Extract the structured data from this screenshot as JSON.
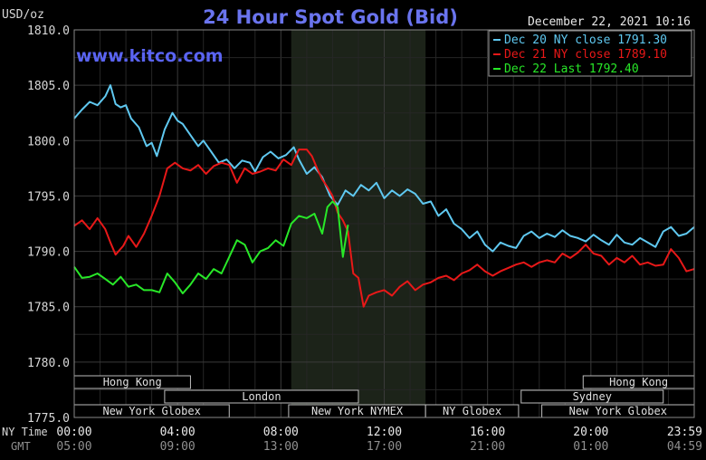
{
  "chart_data": {
    "type": "line",
    "title": "24 Hour Spot Gold (Bid)",
    "ylabel": "USD/oz",
    "watermark": "www.kitco.com",
    "timestamp": "December 22, 2021 10:16",
    "ylim": [
      1775.0,
      1810.0
    ],
    "yticks": [
      "1775.0",
      "1780.0",
      "1785.0",
      "1790.0",
      "1795.0",
      "1800.0",
      "1805.0",
      "1810.0"
    ],
    "xlim": [
      0,
      24
    ],
    "x_ticks_ny": [
      "00:00",
      "04:00",
      "08:00",
      "12:00",
      "16:00",
      "20:00",
      "23:59"
    ],
    "x_ticks_gmt": [
      "05:00",
      "09:00",
      "13:00",
      "17:00",
      "21:00",
      "01:00",
      "04:59"
    ],
    "x_axis_labels": {
      "ny": "NY Time",
      "gmt": "GMT"
    },
    "grid": true,
    "legend_position": "top-right",
    "shaded_region": [
      8.4,
      13.6
    ],
    "sessions": [
      {
        "label": "Hong Kong",
        "start": 0,
        "end": 4.5
      },
      {
        "label": "London",
        "start": 3.5,
        "end": 11.0
      },
      {
        "label": "New York Globex",
        "start": 0,
        "end": 6.0
      },
      {
        "label": "New York NYMEX",
        "start": 8.3,
        "end": 13.6
      },
      {
        "label": "NY Globex",
        "start": 13.6,
        "end": 17.2
      },
      {
        "label": "Hong Kong",
        "start": 19.7,
        "end": 24
      },
      {
        "label": "Sydney",
        "start": 17.3,
        "end": 22.8
      },
      {
        "label": "New York Globex",
        "start": 18.1,
        "end": 24
      }
    ],
    "series": [
      {
        "name": "Dec 20 NY close 1791.30",
        "color": "#5fc8f0",
        "x": [
          0,
          0.3,
          0.6,
          0.9,
          1.2,
          1.4,
          1.6,
          1.8,
          2.0,
          2.2,
          2.5,
          2.8,
          3.0,
          3.2,
          3.5,
          3.8,
          4.0,
          4.2,
          4.5,
          4.8,
          5.0,
          5.3,
          5.6,
          5.9,
          6.2,
          6.5,
          6.8,
          7.0,
          7.3,
          7.6,
          7.9,
          8.2,
          8.5,
          8.7,
          9.0,
          9.3,
          9.6,
          9.9,
          10.2,
          10.5,
          10.8,
          11.1,
          11.4,
          11.7,
          12.0,
          12.3,
          12.6,
          12.9,
          13.2,
          13.5,
          13.8,
          14.1,
          14.4,
          14.7,
          15.0,
          15.3,
          15.6,
          15.9,
          16.2,
          16.5,
          16.8,
          17.1,
          17.4,
          17.7,
          18.0,
          18.3,
          18.6,
          18.9,
          19.2,
          19.5,
          19.8,
          20.1,
          20.4,
          20.7,
          21.0,
          21.3,
          21.6,
          21.9,
          22.2,
          22.5,
          22.8,
          23.1,
          23.4,
          23.7,
          24.0
        ],
        "y": [
          1802.0,
          1802.8,
          1803.5,
          1803.2,
          1804.0,
          1805.0,
          1803.3,
          1803.0,
          1803.2,
          1802.0,
          1801.2,
          1799.5,
          1799.8,
          1798.6,
          1801.0,
          1802.5,
          1801.8,
          1801.5,
          1800.5,
          1799.5,
          1800.0,
          1799.0,
          1798.0,
          1798.3,
          1797.5,
          1798.2,
          1798.0,
          1797.2,
          1798.5,
          1799.0,
          1798.4,
          1798.7,
          1799.4,
          1798.3,
          1797.0,
          1797.6,
          1796.7,
          1795.0,
          1794.2,
          1795.5,
          1795.0,
          1796.0,
          1795.5,
          1796.2,
          1794.8,
          1795.5,
          1795.0,
          1795.6,
          1795.2,
          1794.3,
          1794.5,
          1793.2,
          1793.8,
          1792.5,
          1792.0,
          1791.2,
          1791.8,
          1790.6,
          1790.0,
          1790.8,
          1790.5,
          1790.3,
          1791.4,
          1791.8,
          1791.2,
          1791.6,
          1791.3,
          1791.9,
          1791.4,
          1791.2,
          1790.9,
          1791.5,
          1791.0,
          1790.6,
          1791.5,
          1790.8,
          1790.6,
          1791.2,
          1790.8,
          1790.4,
          1791.8,
          1792.2,
          1791.4,
          1791.6,
          1792.2
        ]
      },
      {
        "name": "Dec 21 NY close 1789.10",
        "color": "#e81818",
        "x": [
          0,
          0.3,
          0.6,
          0.9,
          1.2,
          1.4,
          1.6,
          1.9,
          2.1,
          2.4,
          2.7,
          3.0,
          3.3,
          3.6,
          3.9,
          4.2,
          4.5,
          4.8,
          5.1,
          5.4,
          5.7,
          6.0,
          6.3,
          6.6,
          6.9,
          7.2,
          7.5,
          7.8,
          8.1,
          8.4,
          8.7,
          9.0,
          9.2,
          9.4,
          9.6,
          9.8,
          10.0,
          10.2,
          10.4,
          10.6,
          10.8,
          11.0,
          11.2,
          11.4,
          11.7,
          12.0,
          12.3,
          12.6,
          12.9,
          13.2,
          13.5,
          13.8,
          14.1,
          14.4,
          14.7,
          15.0,
          15.3,
          15.6,
          15.9,
          16.2,
          16.5,
          16.8,
          17.1,
          17.4,
          17.7,
          18.0,
          18.3,
          18.6,
          18.9,
          19.2,
          19.5,
          19.8,
          20.1,
          20.4,
          20.7,
          21.0,
          21.3,
          21.6,
          21.9,
          22.2,
          22.5,
          22.8,
          23.1,
          23.4,
          23.7,
          24.0
        ],
        "y": [
          1792.3,
          1792.8,
          1792.0,
          1793.0,
          1792.0,
          1790.8,
          1789.7,
          1790.5,
          1791.4,
          1790.4,
          1791.6,
          1793.2,
          1795.0,
          1797.5,
          1798.0,
          1797.5,
          1797.3,
          1797.8,
          1797.0,
          1797.7,
          1798.0,
          1797.8,
          1796.2,
          1797.5,
          1797.0,
          1797.2,
          1797.5,
          1797.3,
          1798.3,
          1797.8,
          1799.2,
          1799.2,
          1798.6,
          1797.5,
          1796.5,
          1795.8,
          1795.0,
          1793.5,
          1792.8,
          1791.8,
          1788.0,
          1787.6,
          1785.0,
          1786.0,
          1786.3,
          1786.5,
          1786.0,
          1786.8,
          1787.3,
          1786.5,
          1787.0,
          1787.2,
          1787.6,
          1787.8,
          1787.4,
          1788.0,
          1788.3,
          1788.8,
          1788.2,
          1787.8,
          1788.2,
          1788.5,
          1788.8,
          1789.0,
          1788.6,
          1789.0,
          1789.2,
          1789.0,
          1789.8,
          1789.4,
          1789.9,
          1790.6,
          1789.8,
          1789.6,
          1788.8,
          1789.4,
          1789.0,
          1789.6,
          1788.8,
          1789.0,
          1788.7,
          1788.8,
          1790.2,
          1789.4,
          1788.2,
          1788.4
        ]
      },
      {
        "name": "Dec 22 Last 1792.40",
        "color": "#28e828",
        "x": [
          0,
          0.3,
          0.6,
          0.9,
          1.2,
          1.5,
          1.8,
          2.1,
          2.4,
          2.7,
          3.0,
          3.3,
          3.6,
          3.9,
          4.2,
          4.5,
          4.8,
          5.1,
          5.4,
          5.7,
          6.0,
          6.3,
          6.6,
          6.9,
          7.2,
          7.5,
          7.8,
          8.1,
          8.4,
          8.7,
          9.0,
          9.3,
          9.6,
          9.8,
          10.0,
          10.2,
          10.4,
          10.6
        ],
        "y": [
          1788.6,
          1787.6,
          1787.7,
          1788.0,
          1787.5,
          1787.0,
          1787.7,
          1786.8,
          1787.0,
          1786.5,
          1786.5,
          1786.3,
          1788.0,
          1787.2,
          1786.2,
          1787.0,
          1788.0,
          1787.5,
          1788.4,
          1788.0,
          1789.5,
          1791.0,
          1790.6,
          1789.0,
          1790.0,
          1790.3,
          1791.0,
          1790.5,
          1792.5,
          1793.2,
          1793.0,
          1793.4,
          1791.6,
          1794.0,
          1794.5,
          1794.0,
          1789.5,
          1792.4
        ]
      }
    ]
  }
}
